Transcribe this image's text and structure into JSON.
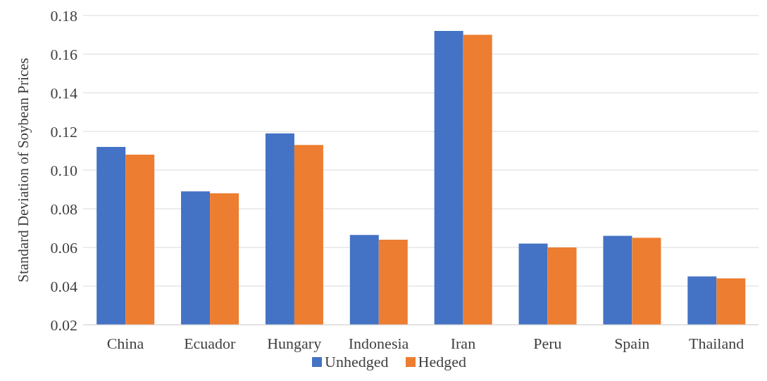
{
  "chart_data": {
    "type": "bar",
    "ylabel": "Standard Deviation of Soybean Prices",
    "categories": [
      "China",
      "Ecuador",
      "Hungary",
      "Indonesia",
      "Iran",
      "Peru",
      "Spain",
      "Thailand"
    ],
    "series": [
      {
        "name": "Unhedged",
        "color": "#4472c4",
        "values": [
          0.112,
          0.089,
          0.119,
          0.0665,
          0.172,
          0.062,
          0.066,
          0.045
        ]
      },
      {
        "name": "Hedged",
        "color": "#ed7d31",
        "values": [
          0.108,
          0.088,
          0.113,
          0.064,
          0.17,
          0.06,
          0.065,
          0.044
        ]
      }
    ],
    "ylim": [
      0.02,
      0.18
    ],
    "yticks": [
      0.02,
      0.04,
      0.06,
      0.08,
      {
        "value": 0.1,
        "label": "0.10"
      },
      0.12,
      0.14,
      0.16,
      0.18
    ],
    "grid": "y",
    "legend": "bottom"
  }
}
